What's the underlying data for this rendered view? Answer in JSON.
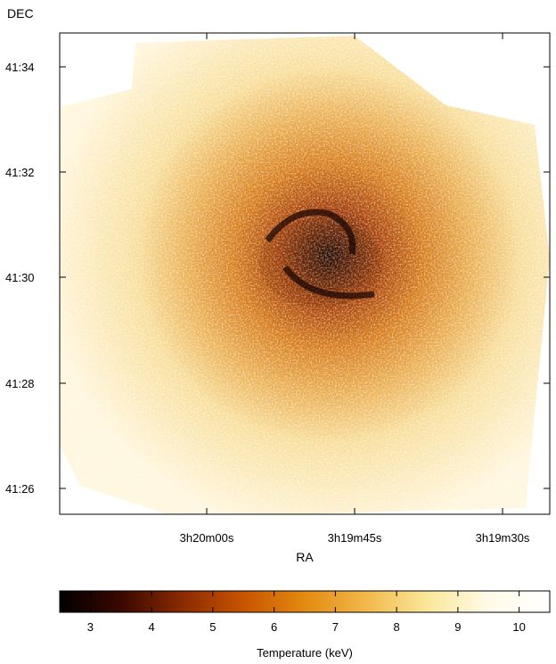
{
  "chart_data": {
    "type": "heatmap",
    "title": "",
    "xlabel": "RA",
    "ylabel": "DEC",
    "x_ticks": [
      "3h20m00s",
      "3h19m45s",
      "3h19m30s"
    ],
    "y_ticks": [
      "41:34",
      "41:32",
      "41:30",
      "41:28",
      "41:26"
    ],
    "colorbar": {
      "label": "Temperature (keV)",
      "range": [
        2.5,
        10.5
      ],
      "ticks": [
        "3",
        "4",
        "5",
        "6",
        "7",
        "8",
        "9",
        "10"
      ],
      "colormap": [
        "#000000",
        "#3a0800",
        "#8a2a00",
        "#c85400",
        "#e38a10",
        "#f2b84a",
        "#fae79a",
        "#fffbe8",
        "#ffffff"
      ]
    },
    "map_description_values": {
      "core_temperature_keV": 3,
      "middle_region_temperature_keV": 4.5,
      "outer_region_temperature_keV": 7.5
    }
  }
}
